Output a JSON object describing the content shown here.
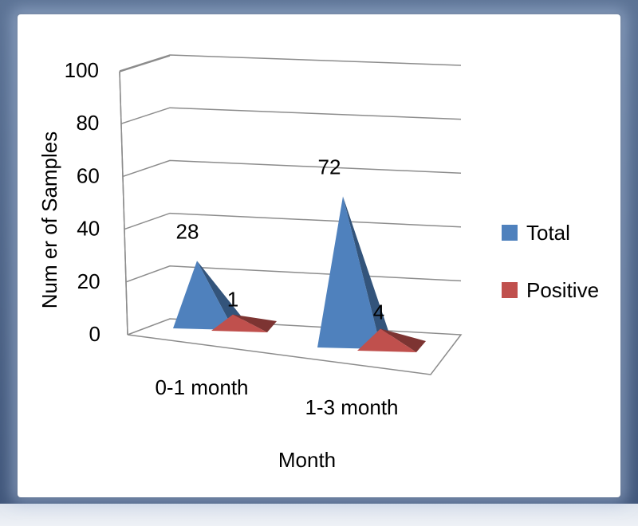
{
  "chart_data": {
    "type": "bar",
    "style": "3d-pyramid",
    "categories": [
      "0-1 month",
      "1-3 month"
    ],
    "series": [
      {
        "name": "Total",
        "values": [
          28,
          72
        ],
        "color": "#4f81bd",
        "data_labels": [
          "28",
          "72"
        ]
      },
      {
        "name": "Positive",
        "values": [
          1,
          4
        ],
        "color": "#c0504d",
        "data_labels": [
          "1",
          "4"
        ]
      }
    ],
    "title": "",
    "xlabel": "Month",
    "ylabel": "Num er of Samples",
    "ylim": [
      0,
      100
    ],
    "yticks": [
      "0",
      "20",
      "40",
      "60",
      "80",
      "100"
    ],
    "grid": true,
    "legend_position": "right"
  }
}
